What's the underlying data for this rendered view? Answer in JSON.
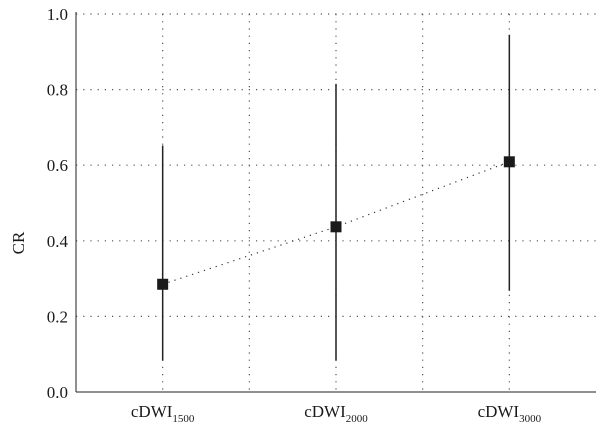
{
  "chart_data": {
    "type": "scatter",
    "title": "",
    "ylabel": "CR",
    "xlabel": "",
    "ylim": [
      0.0,
      1.0
    ],
    "yticks": [
      "0.0",
      "0.2",
      "0.4",
      "0.6",
      "0.8",
      "1.0"
    ],
    "grid": true,
    "categories": [
      {
        "base": "cDWI",
        "sub": "1500"
      },
      {
        "base": "cDWI",
        "sub": "2000"
      },
      {
        "base": "cDWI",
        "sub": "3000"
      }
    ],
    "series": [
      {
        "values": [
          0.285,
          0.437,
          0.609
        ],
        "lower": [
          0.083,
          0.083,
          0.268
        ],
        "upper": [
          0.652,
          0.815,
          0.945
        ]
      }
    ]
  }
}
